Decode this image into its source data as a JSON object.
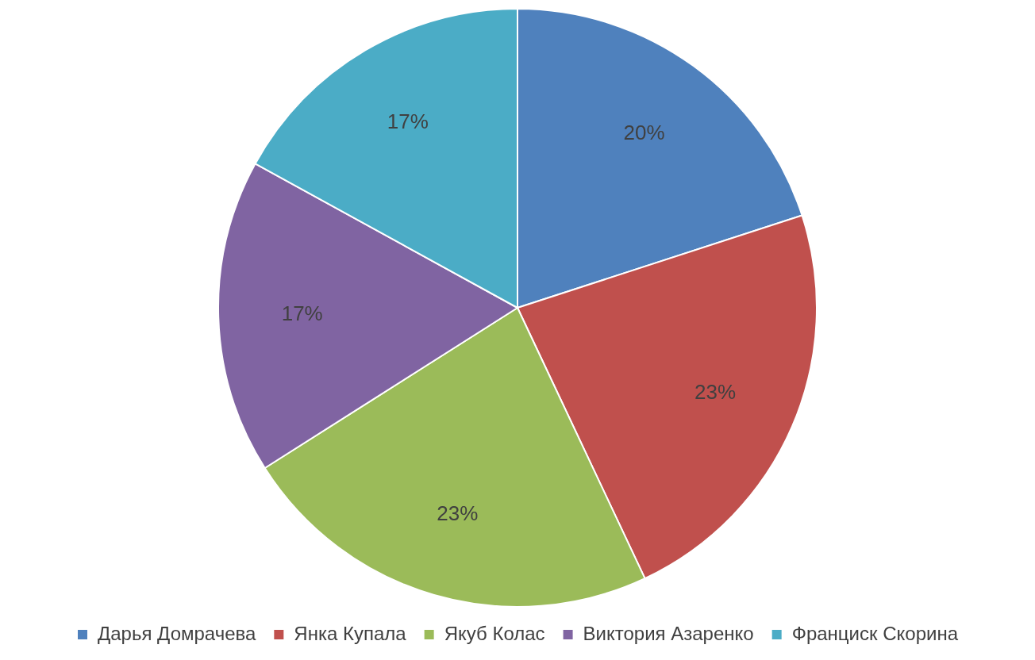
{
  "chart_data": {
    "type": "pie",
    "categories": [
      "Дарья Домрачева",
      "Янка Купала",
      "Якуб Колас",
      "Виктория Азаренко",
      "Франциск Скорина"
    ],
    "values": [
      20,
      23,
      23,
      17,
      17
    ],
    "colors": [
      "#4f81bd",
      "#c0504d",
      "#9bbb59",
      "#8064a2",
      "#4bacc6"
    ],
    "value_labels": [
      "20%",
      "23%",
      "23%",
      "17%",
      "17%"
    ],
    "legend": "bottom"
  }
}
